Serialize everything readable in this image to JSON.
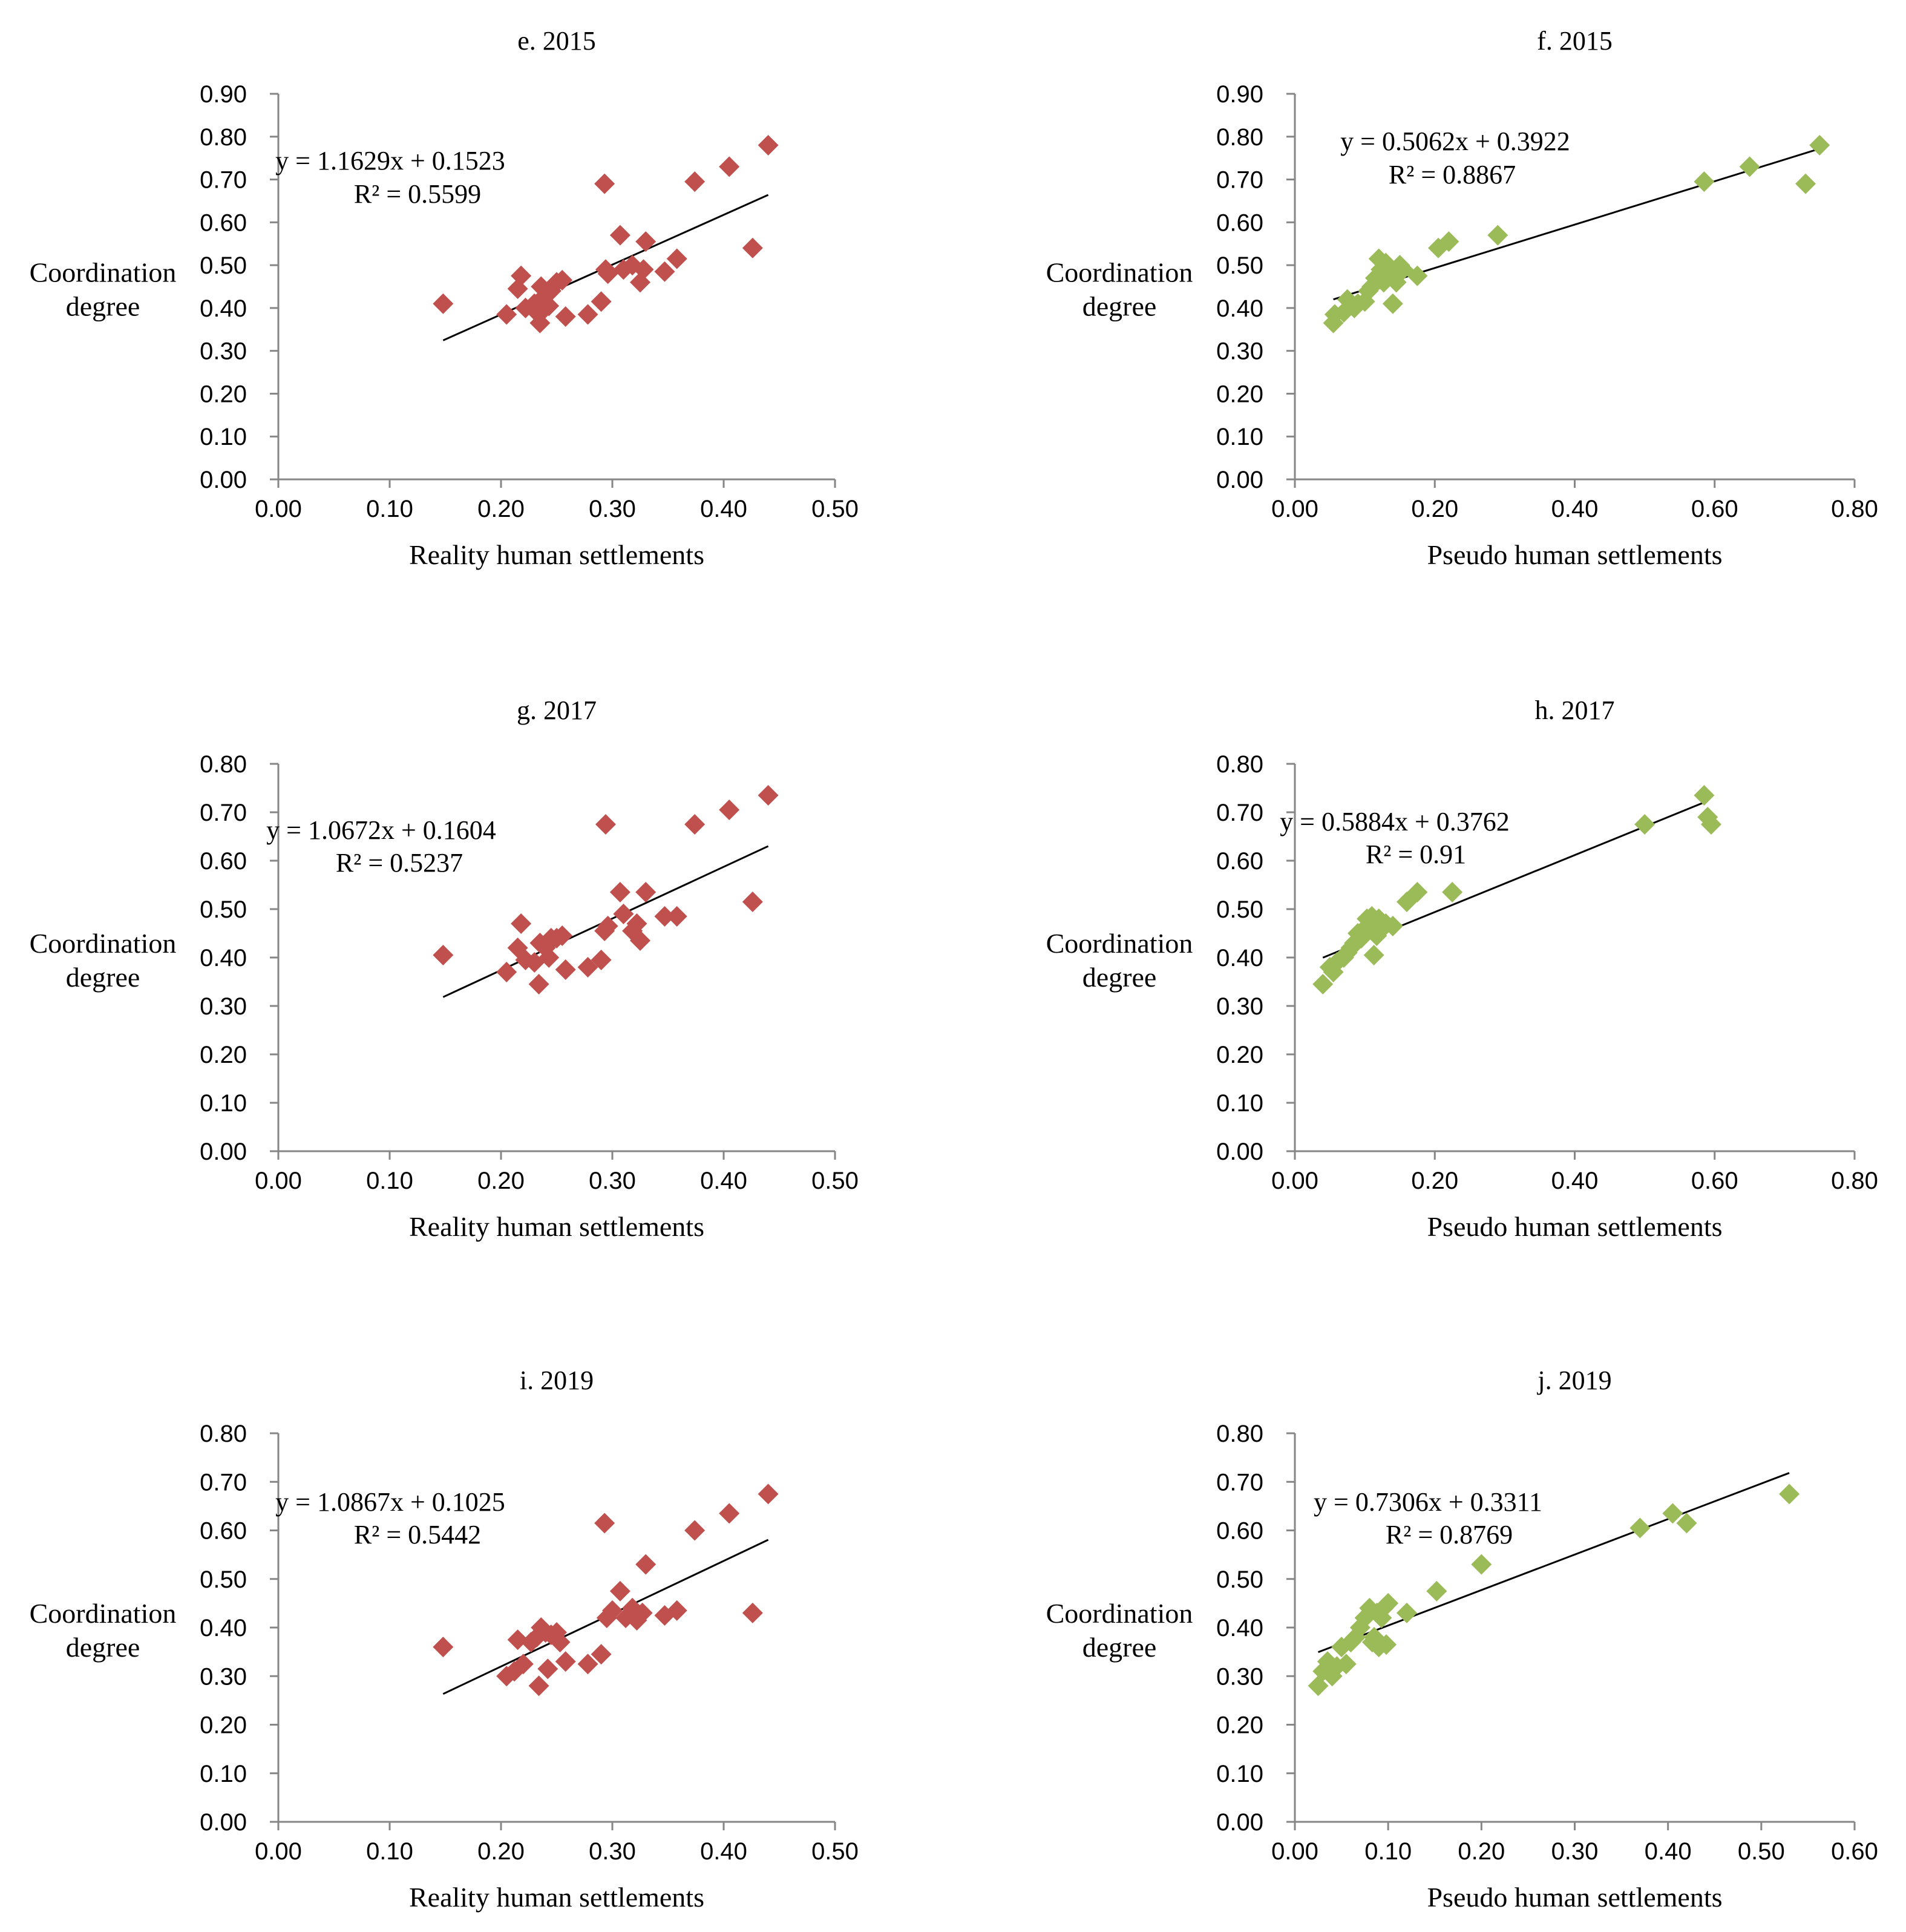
{
  "colors": {
    "reality": "#c0504d",
    "pseudo": "#9bbb59",
    "axis": "#868686",
    "trend": "#000000"
  },
  "chart_data": [
    {
      "type": "scatter",
      "title": "e. 2015",
      "xlabel": "Reality  human settlements",
      "ylabel": [
        "Coordination",
        "degree"
      ],
      "xlim": [
        0,
        0.5
      ],
      "ylim": [
        0,
        0.9
      ],
      "xticks": [
        "0.00",
        "0.10",
        "0.20",
        "0.30",
        "0.40",
        "0.50"
      ],
      "yticks": [
        "0.00",
        "0.10",
        "0.20",
        "0.30",
        "0.40",
        "0.50",
        "0.60",
        "0.70",
        "0.80",
        "0.90"
      ],
      "color_key": "reality",
      "trend": {
        "slope": 1.1629,
        "intercept": 0.1523,
        "x_range": [
          0.148,
          0.44
        ],
        "equation": "y = 1.1629x + 0.1523",
        "r2": "R² = 0.5599"
      },
      "points": [
        [
          0.148,
          0.41
        ],
        [
          0.205,
          0.385
        ],
        [
          0.215,
          0.445
        ],
        [
          0.218,
          0.475
        ],
        [
          0.222,
          0.4
        ],
        [
          0.23,
          0.41
        ],
        [
          0.234,
          0.385
        ],
        [
          0.235,
          0.365
        ],
        [
          0.236,
          0.45
        ],
        [
          0.24,
          0.43
        ],
        [
          0.243,
          0.405
        ],
        [
          0.245,
          0.44
        ],
        [
          0.25,
          0.46
        ],
        [
          0.255,
          0.465
        ],
        [
          0.258,
          0.38
        ],
        [
          0.278,
          0.385
        ],
        [
          0.29,
          0.415
        ],
        [
          0.293,
          0.69
        ],
        [
          0.294,
          0.49
        ],
        [
          0.296,
          0.48
        ],
        [
          0.307,
          0.57
        ],
        [
          0.31,
          0.49
        ],
        [
          0.318,
          0.5
        ],
        [
          0.325,
          0.46
        ],
        [
          0.328,
          0.49
        ],
        [
          0.33,
          0.555
        ],
        [
          0.347,
          0.485
        ],
        [
          0.358,
          0.515
        ],
        [
          0.374,
          0.695
        ],
        [
          0.405,
          0.73
        ],
        [
          0.426,
          0.54
        ],
        [
          0.44,
          0.78
        ]
      ]
    },
    {
      "type": "scatter",
      "title": "f. 2015",
      "xlabel": "Pseudo human settlements",
      "ylabel": [
        "Coordination",
        "degree"
      ],
      "xlim": [
        0,
        0.8
      ],
      "ylim": [
        0,
        0.9
      ],
      "xticks": [
        "0.00",
        "0.20",
        "0.40",
        "0.60",
        "0.80"
      ],
      "yticks": [
        "0.00",
        "0.10",
        "0.20",
        "0.30",
        "0.40",
        "0.50",
        "0.60",
        "0.70",
        "0.80",
        "0.90"
      ],
      "color_key": "pseudo",
      "trend": {
        "slope": 0.5062,
        "intercept": 0.3922,
        "x_range": [
          0.055,
          0.75
        ],
        "equation": "y = 0.5062x + 0.3922",
        "r2": "R² = 0.8867"
      },
      "points": [
        [
          0.055,
          0.365
        ],
        [
          0.057,
          0.385
        ],
        [
          0.07,
          0.39
        ],
        [
          0.075,
          0.42
        ],
        [
          0.085,
          0.4
        ],
        [
          0.09,
          0.41
        ],
        [
          0.1,
          0.415
        ],
        [
          0.105,
          0.44
        ],
        [
          0.11,
          0.45
        ],
        [
          0.115,
          0.47
        ],
        [
          0.12,
          0.515
        ],
        [
          0.123,
          0.49
        ],
        [
          0.127,
          0.46
        ],
        [
          0.13,
          0.505
        ],
        [
          0.135,
          0.48
        ],
        [
          0.14,
          0.41
        ],
        [
          0.145,
          0.46
        ],
        [
          0.15,
          0.5
        ],
        [
          0.155,
          0.49
        ],
        [
          0.175,
          0.475
        ],
        [
          0.205,
          0.54
        ],
        [
          0.22,
          0.555
        ],
        [
          0.29,
          0.57
        ],
        [
          0.585,
          0.695
        ],
        [
          0.65,
          0.73
        ],
        [
          0.73,
          0.69
        ],
        [
          0.75,
          0.78
        ]
      ]
    },
    {
      "type": "scatter",
      "title": "g. 2017",
      "xlabel": "Reality  human settlements",
      "ylabel": [
        "Coordination",
        "degree"
      ],
      "xlim": [
        0,
        0.5
      ],
      "ylim": [
        0,
        0.8
      ],
      "xticks": [
        "0.00",
        "0.10",
        "0.20",
        "0.30",
        "0.40",
        "0.50"
      ],
      "yticks": [
        "0.00",
        "0.10",
        "0.20",
        "0.30",
        "0.40",
        "0.50",
        "0.60",
        "0.70",
        "0.80"
      ],
      "color_key": "reality",
      "trend": {
        "slope": 1.0672,
        "intercept": 0.1604,
        "x_range": [
          0.148,
          0.44
        ],
        "equation": "y = 1.0672x + 0.1604",
        "r2": "R² = 0.5237"
      },
      "points": [
        [
          0.148,
          0.405
        ],
        [
          0.205,
          0.37
        ],
        [
          0.215,
          0.42
        ],
        [
          0.218,
          0.47
        ],
        [
          0.222,
          0.395
        ],
        [
          0.23,
          0.39
        ],
        [
          0.234,
          0.345
        ],
        [
          0.235,
          0.43
        ],
        [
          0.24,
          0.42
        ],
        [
          0.243,
          0.4
        ],
        [
          0.245,
          0.44
        ],
        [
          0.25,
          0.44
        ],
        [
          0.255,
          0.445
        ],
        [
          0.258,
          0.375
        ],
        [
          0.278,
          0.38
        ],
        [
          0.29,
          0.395
        ],
        [
          0.293,
          0.455
        ],
        [
          0.294,
          0.675
        ],
        [
          0.296,
          0.465
        ],
        [
          0.307,
          0.535
        ],
        [
          0.31,
          0.49
        ],
        [
          0.318,
          0.455
        ],
        [
          0.322,
          0.47
        ],
        [
          0.325,
          0.435
        ],
        [
          0.33,
          0.535
        ],
        [
          0.347,
          0.485
        ],
        [
          0.358,
          0.485
        ],
        [
          0.374,
          0.675
        ],
        [
          0.405,
          0.705
        ],
        [
          0.426,
          0.515
        ],
        [
          0.44,
          0.735
        ]
      ]
    },
    {
      "type": "scatter",
      "title": "h. 2017",
      "xlabel": "Pseudo human settlements",
      "ylabel": [
        "Coordination",
        "degree"
      ],
      "xlim": [
        0,
        0.8
      ],
      "ylim": [
        0,
        0.8
      ],
      "xticks": [
        "0.00",
        "0.20",
        "0.40",
        "0.60",
        "0.80"
      ],
      "yticks": [
        "0.00",
        "0.10",
        "0.20",
        "0.30",
        "0.40",
        "0.50",
        "0.60",
        "0.70",
        "0.80"
      ],
      "color_key": "pseudo",
      "trend": {
        "slope": 0.5884,
        "intercept": 0.3762,
        "x_range": [
          0.04,
          0.59
        ],
        "equation": "y = 0.5884x + 0.3762",
        "r2": "R² = 0.91"
      },
      "points": [
        [
          0.04,
          0.345
        ],
        [
          0.05,
          0.38
        ],
        [
          0.055,
          0.37
        ],
        [
          0.06,
          0.39
        ],
        [
          0.07,
          0.4
        ],
        [
          0.075,
          0.41
        ],
        [
          0.08,
          0.42
        ],
        [
          0.085,
          0.43
        ],
        [
          0.09,
          0.45
        ],
        [
          0.095,
          0.44
        ],
        [
          0.1,
          0.46
        ],
        [
          0.103,
          0.48
        ],
        [
          0.107,
          0.47
        ],
        [
          0.11,
          0.485
        ],
        [
          0.113,
          0.405
        ],
        [
          0.117,
          0.445
        ],
        [
          0.12,
          0.48
        ],
        [
          0.125,
          0.46
        ],
        [
          0.13,
          0.47
        ],
        [
          0.14,
          0.465
        ],
        [
          0.16,
          0.515
        ],
        [
          0.175,
          0.535
        ],
        [
          0.225,
          0.535
        ],
        [
          0.5,
          0.675
        ],
        [
          0.585,
          0.735
        ],
        [
          0.59,
          0.69
        ],
        [
          0.595,
          0.675
        ]
      ]
    },
    {
      "type": "scatter",
      "title": "i. 2019",
      "xlabel": "Reality  human settlements",
      "ylabel": [
        "Coordination",
        "degree"
      ],
      "xlim": [
        0,
        0.5
      ],
      "ylim": [
        0,
        0.8
      ],
      "xticks": [
        "0.00",
        "0.10",
        "0.20",
        "0.30",
        "0.40",
        "0.50"
      ],
      "yticks": [
        "0.00",
        "0.10",
        "0.20",
        "0.30",
        "0.40",
        "0.50",
        "0.60",
        "0.70",
        "0.80"
      ],
      "color_key": "reality",
      "trend": {
        "slope": 1.0867,
        "intercept": 0.1025,
        "x_range": [
          0.148,
          0.44
        ],
        "equation": "y = 1.0867x + 0.1025",
        "r2": "R² = 0.5442"
      },
      "points": [
        [
          0.148,
          0.36
        ],
        [
          0.205,
          0.3
        ],
        [
          0.212,
          0.31
        ],
        [
          0.215,
          0.375
        ],
        [
          0.22,
          0.325
        ],
        [
          0.227,
          0.37
        ],
        [
          0.232,
          0.38
        ],
        [
          0.234,
          0.28
        ],
        [
          0.236,
          0.4
        ],
        [
          0.24,
          0.39
        ],
        [
          0.242,
          0.315
        ],
        [
          0.245,
          0.385
        ],
        [
          0.25,
          0.39
        ],
        [
          0.253,
          0.37
        ],
        [
          0.258,
          0.33
        ],
        [
          0.278,
          0.325
        ],
        [
          0.29,
          0.345
        ],
        [
          0.293,
          0.615
        ],
        [
          0.295,
          0.42
        ],
        [
          0.3,
          0.435
        ],
        [
          0.307,
          0.475
        ],
        [
          0.312,
          0.42
        ],
        [
          0.318,
          0.44
        ],
        [
          0.322,
          0.415
        ],
        [
          0.327,
          0.43
        ],
        [
          0.33,
          0.53
        ],
        [
          0.347,
          0.425
        ],
        [
          0.358,
          0.435
        ],
        [
          0.374,
          0.6
        ],
        [
          0.405,
          0.635
        ],
        [
          0.426,
          0.43
        ],
        [
          0.44,
          0.675
        ]
      ]
    },
    {
      "type": "scatter",
      "title": "j. 2019",
      "xlabel": "Pseudo human settlements",
      "ylabel": [
        "Coordination",
        "degree"
      ],
      "xlim": [
        0,
        0.6
      ],
      "ylim": [
        0,
        0.8
      ],
      "xticks": [
        "0.00",
        "0.10",
        "0.20",
        "0.30",
        "0.40",
        "0.50",
        "0.60"
      ],
      "yticks": [
        "0.00",
        "0.10",
        "0.20",
        "0.30",
        "0.40",
        "0.50",
        "0.60",
        "0.70",
        "0.80"
      ],
      "color_key": "pseudo",
      "trend": {
        "slope": 0.7306,
        "intercept": 0.3311,
        "x_range": [
          0.025,
          0.53
        ],
        "equation": "y = 0.7306x + 0.3311",
        "r2": "R² = 0.8769"
      },
      "points": [
        [
          0.025,
          0.28
        ],
        [
          0.03,
          0.31
        ],
        [
          0.035,
          0.33
        ],
        [
          0.04,
          0.3
        ],
        [
          0.045,
          0.32
        ],
        [
          0.05,
          0.36
        ],
        [
          0.055,
          0.325
        ],
        [
          0.06,
          0.37
        ],
        [
          0.065,
          0.38
        ],
        [
          0.07,
          0.4
        ],
        [
          0.075,
          0.42
        ],
        [
          0.08,
          0.44
        ],
        [
          0.083,
          0.37
        ],
        [
          0.085,
          0.38
        ],
        [
          0.088,
          0.43
        ],
        [
          0.09,
          0.36
        ],
        [
          0.093,
          0.42
        ],
        [
          0.095,
          0.44
        ],
        [
          0.098,
          0.365
        ],
        [
          0.1,
          0.45
        ],
        [
          0.12,
          0.43
        ],
        [
          0.152,
          0.475
        ],
        [
          0.2,
          0.53
        ],
        [
          0.37,
          0.605
        ],
        [
          0.405,
          0.635
        ],
        [
          0.42,
          0.615
        ],
        [
          0.53,
          0.675
        ]
      ]
    }
  ]
}
